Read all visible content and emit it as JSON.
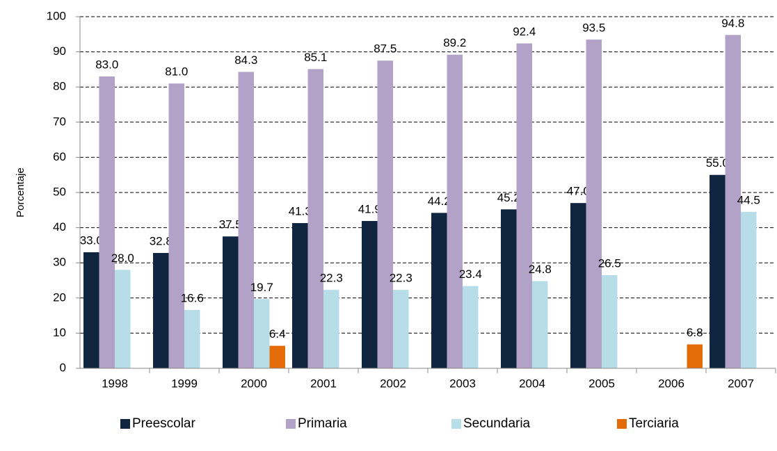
{
  "chart_data": {
    "type": "bar",
    "y_label": "Porcentaje",
    "categories": [
      "1998",
      "1999",
      "2000",
      "2001",
      "2002",
      "2003",
      "2004",
      "2005",
      "2006",
      "2007"
    ],
    "series": [
      {
        "name": "Preescolar",
        "color": "#10253f",
        "values": [
          33.0,
          32.8,
          37.5,
          41.3,
          41.9,
          44.2,
          45.2,
          47.0,
          null,
          55.0
        ],
        "value_labels": [
          "33.0",
          "32.8",
          "37.5",
          "41.3",
          "41.9",
          "44.2",
          "45.2",
          "47.0",
          null,
          "55.0"
        ]
      },
      {
        "name": "Primaria",
        "color": "#b3a2c7",
        "values": [
          83.0,
          81.0,
          84.3,
          85.1,
          87.5,
          89.2,
          92.4,
          93.5,
          null,
          94.8
        ],
        "value_labels": [
          "83.0",
          "81.0",
          "84.3",
          "85.1",
          "87.5",
          "89.2",
          "92.4",
          "93.5",
          null,
          "94.8"
        ]
      },
      {
        "name": "Secundaria",
        "color": "#b7dee8",
        "values": [
          28.0,
          16.6,
          19.7,
          22.3,
          22.3,
          23.4,
          24.8,
          26.5,
          null,
          44.5
        ],
        "value_labels": [
          "28.0",
          "16.6",
          "19.7",
          "22.3",
          "22.3",
          "23.4",
          "24.8",
          "26.5",
          null,
          "44.5"
        ]
      },
      {
        "name": "Terciaria",
        "color": "#e36c09",
        "values": [
          null,
          null,
          6.4,
          null,
          null,
          null,
          null,
          null,
          6.8,
          null
        ],
        "value_labels": [
          null,
          null,
          "6.4",
          null,
          null,
          null,
          null,
          null,
          "6.8",
          null
        ]
      }
    ],
    "ylim": [
      0,
      100
    ],
    "yticks": [
      0,
      10,
      20,
      30,
      40,
      50,
      60,
      70,
      80,
      90,
      100
    ],
    "grid": true,
    "legend": "bottom"
  }
}
